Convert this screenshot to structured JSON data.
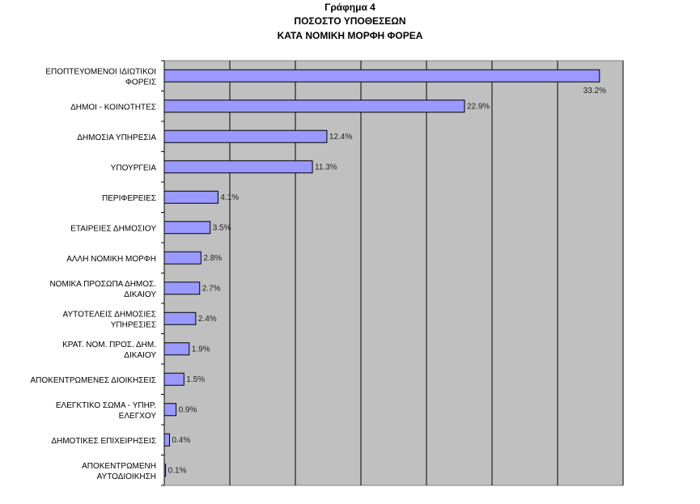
{
  "chart_data": {
    "type": "bar",
    "orientation": "horizontal",
    "title": [
      "Γράφημα 4",
      "ΠΟΣΟΣΤΟ ΥΠΟΘΕΣΕΩΝ",
      "ΚΑΤΑ ΝΟΜΙΚΗ ΜΟΡΦΗ ΦΟΡΕΑ"
    ],
    "categories": [
      [
        "ΕΠΟΠΤΕΥΟΜΕΝΟΙ ΙΔΙΩΤΙΚΟΙ",
        "ΦΟΡΕΙΣ"
      ],
      [
        "ΔΗΜΟΙ - ΚΟΙΝΟΤΗΤΕΣ"
      ],
      [
        "ΔΗΜΟΣΙΑ ΥΠΗΡΕΣΙΑ"
      ],
      [
        "ΥΠΟΥΡΓΕΙΑ"
      ],
      [
        "ΠΕΡΙΦΕΡΕΙΕΣ"
      ],
      [
        "ΕΤΑΙΡΕΙΕΣ ΔΗΜΟΣΙΟΥ"
      ],
      [
        "ΑΛΛΗ ΝΟΜΙΚΗ ΜΟΡΦΗ"
      ],
      [
        "ΝΟΜΙΚΑ ΠΡΟΣΩΠΑ ΔΗΜΟΣ.",
        "ΔΙΚΑΙΟΥ"
      ],
      [
        "ΑΥΤΟΤΕΛΕΙΣ ΔΗΜΟΣΙΕΣ",
        "ΥΠΗΡΕΣΙΕΣ"
      ],
      [
        "ΚΡΑΤ. ΝΟΜ. ΠΡΟΣ. ΔΗΜ.",
        "ΔΙΚΑΙΟΥ"
      ],
      [
        "ΑΠΟΚΕΝΤΡΩΜΕΝΕΣ ΔΙΟΙΚΗΣΕΙΣ"
      ],
      [
        "ΕΛΕΓΚΤΙΚΟ ΣΩΜΑ - ΥΠΗΡ.",
        "ΕΛΕΓΧΟΥ"
      ],
      [
        "ΔΗΜΟΤΙΚΕΣ ΕΠΙΧΕΙΡΗΣΕΙΣ"
      ],
      [
        "ΑΠΟΚΕΝΤΡΩΜΕΝΗ",
        "ΑΥΤΟΔΙΟΙΚΗΣΗ"
      ]
    ],
    "values": [
      33.2,
      22.9,
      12.4,
      11.3,
      4.1,
      3.5,
      2.8,
      2.7,
      2.4,
      1.9,
      1.5,
      0.9,
      0.4,
      0.1
    ],
    "data_labels": [
      "33.2%",
      "22.9%",
      "12.4%",
      "11.3%",
      "4.1%",
      "3.5%",
      "2.8%",
      "2.7%",
      "2.4%",
      "1.9%",
      "1.5%",
      "0.9%",
      "0.4%",
      "0.1%"
    ],
    "xlim": [
      0,
      35
    ],
    "grid_step": 5,
    "grid": true,
    "legend": "none",
    "colors": {
      "bar": "#9999FF",
      "plot_bg": "#C0C0C0",
      "grid": "#000000"
    }
  }
}
